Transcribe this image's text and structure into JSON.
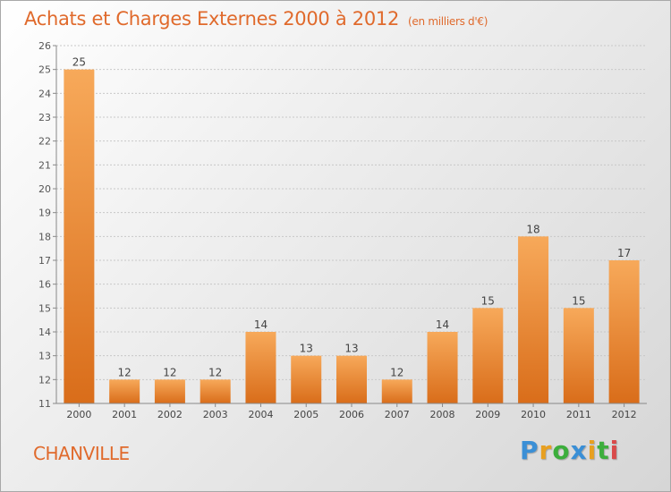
{
  "title": "Achats et Charges Externes 2000 à 2012",
  "subtitle": "(en milliers d'€)",
  "commune": "CHANVILLE",
  "logo": {
    "letters": [
      "P",
      "r",
      "o",
      "x",
      "i",
      "t",
      "i"
    ],
    "colors": [
      "#3a8fd6",
      "#e8a020",
      "#3cae3c",
      "#3a8fd6",
      "#e8a020",
      "#3cae3c",
      "#d94a4a"
    ]
  },
  "colors": {
    "bar_top": "#f7a95a",
    "bar_bottom": "#d96d1a",
    "title": "#e06a2c"
  },
  "chart_data": {
    "type": "bar",
    "categories": [
      "2000",
      "2001",
      "2002",
      "2003",
      "2004",
      "2005",
      "2006",
      "2007",
      "2008",
      "2009",
      "2010",
      "2011",
      "2012"
    ],
    "values": [
      25,
      12,
      12,
      12,
      14,
      13,
      13,
      12,
      14,
      15,
      18,
      15,
      17
    ],
    "ylim": [
      11,
      26
    ],
    "yticks": [
      11,
      12,
      13,
      14,
      15,
      16,
      17,
      18,
      19,
      20,
      21,
      22,
      23,
      24,
      25,
      26
    ],
    "grid": true,
    "data_labels": true
  }
}
